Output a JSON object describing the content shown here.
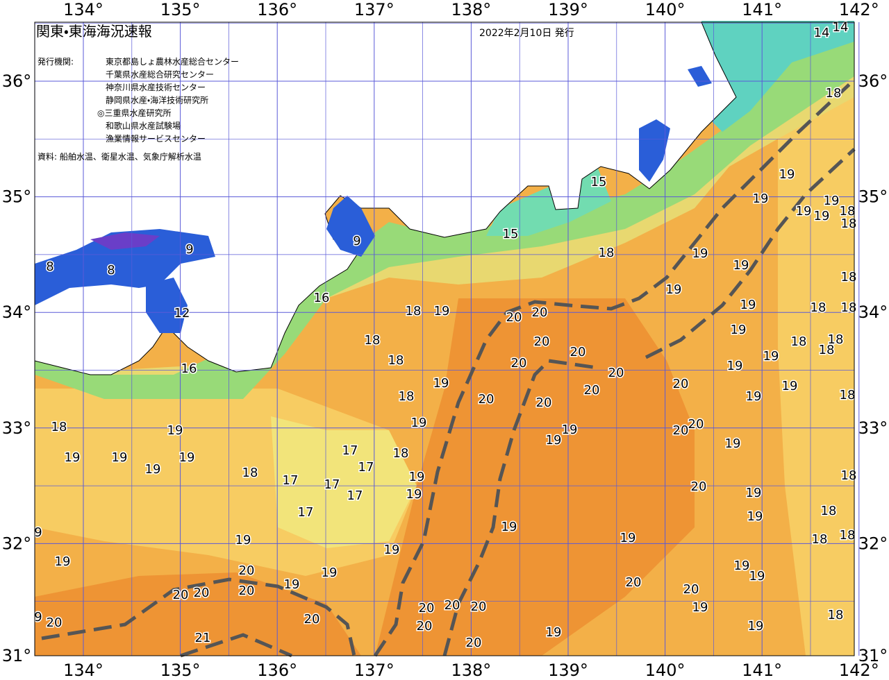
{
  "header": {
    "title": "関東・東海海況速報",
    "date": "2022年2月10日 発行"
  },
  "issuers": {
    "label": "発行機関:",
    "names": [
      "東京都島しょ農林水産総合センター",
      "千葉県水産総合研究センター",
      "神奈川県水産技術センター",
      "静岡県水産・海洋技術研究所",
      "◎三重県水産研究所",
      "和歌山県水産試験場",
      "漁業情報サービスセンター"
    ]
  },
  "source": "資料: 船舶水温、衛星水温、気象庁解析水温",
  "map": {
    "lon_ticks": [
      {
        "value": 134,
        "label": "134°"
      },
      {
        "value": 135,
        "label": "135°"
      },
      {
        "value": 136,
        "label": "136°"
      },
      {
        "value": 137,
        "label": "137°"
      },
      {
        "value": 138,
        "label": "138°"
      },
      {
        "value": 139,
        "label": "139°"
      },
      {
        "value": 140,
        "label": "140°"
      },
      {
        "value": 141,
        "label": "141°"
      },
      {
        "value": 142,
        "label": "142°"
      }
    ],
    "lat_ticks": [
      {
        "value": 36,
        "label": "36°"
      },
      {
        "value": 35,
        "label": "35°"
      },
      {
        "value": 34,
        "label": "34°"
      },
      {
        "value": 33,
        "label": "33°"
      },
      {
        "value": 32,
        "label": "32°"
      },
      {
        "value": 31,
        "label": "31°"
      }
    ],
    "sst_labels": [
      14,
      14,
      18,
      15,
      15,
      9,
      9,
      8,
      8,
      12,
      16,
      16,
      18,
      19,
      19,
      19,
      19,
      19,
      18,
      18,
      19,
      19,
      19,
      18,
      19,
      18,
      18,
      20,
      20,
      18,
      19,
      18,
      20,
      20,
      20,
      18,
      19,
      18,
      18,
      19,
      18,
      19,
      20,
      20,
      19,
      18,
      20,
      20,
      20,
      19,
      19,
      18,
      19,
      18,
      19,
      20,
      20,
      19,
      19,
      19,
      19,
      19,
      19,
      19,
      18,
      17,
      17,
      18,
      17,
      17,
      17,
      19,
      19,
      20,
      19,
      18,
      17,
      19,
      18,
      19,
      19,
      18,
      18,
      9,
      19,
      19,
      19,
      19,
      20,
      19,
      19,
      19,
      20,
      20,
      20,
      20,
      20,
      19,
      20,
      20,
      20,
      20,
      20,
      20,
      19,
      18,
      9,
      21,
      19,
      20
    ]
  }
}
